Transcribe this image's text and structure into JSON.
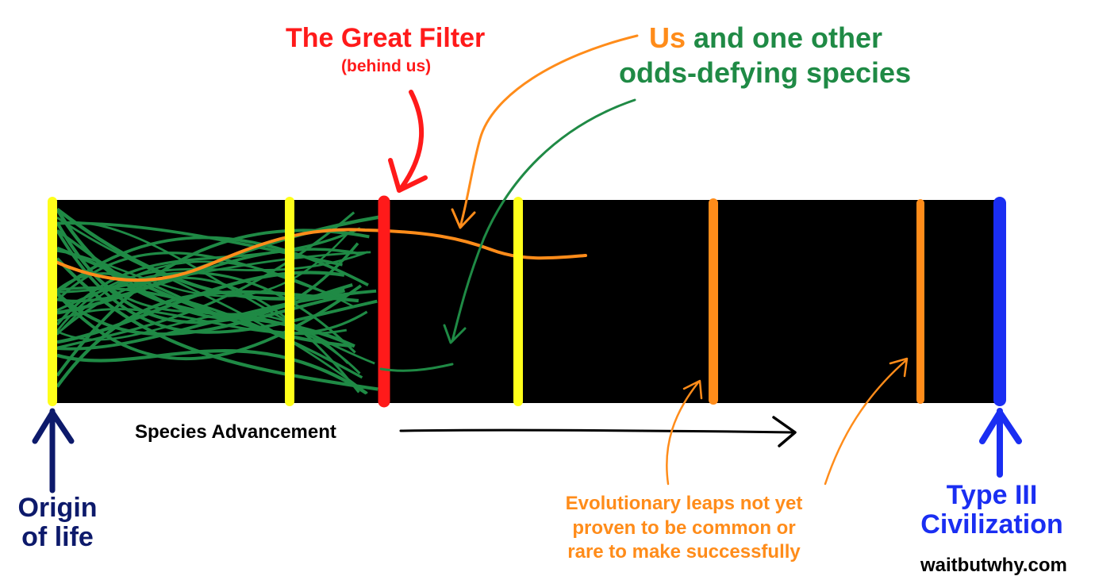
{
  "great_filter": {
    "title": "The Great Filter",
    "subtitle": "(behind us)"
  },
  "callout_species": {
    "us": "Us",
    "line1_rest": " and one other",
    "line2": "odds-defying species"
  },
  "axis_label": "Species Advancement",
  "origin_label": {
    "line1": "Origin",
    "line2": "of life"
  },
  "end_label": {
    "line1": "Type III",
    "line2": "Civilization"
  },
  "leaps_label": {
    "line1": "Evolutionary leaps not yet",
    "line2": "proven to be common or",
    "line3": "rare to make successfully"
  },
  "watermark": "waitbutwhy.com",
  "colors": {
    "bar": "#000000",
    "green_paths": "#1f8a45",
    "yellow_markers": "#ffff1a",
    "filter_marker": "#ff1a1a",
    "orange": "#ff8c1a",
    "origin": "#0d1a6b",
    "civilization": "#1a2ef2"
  }
}
